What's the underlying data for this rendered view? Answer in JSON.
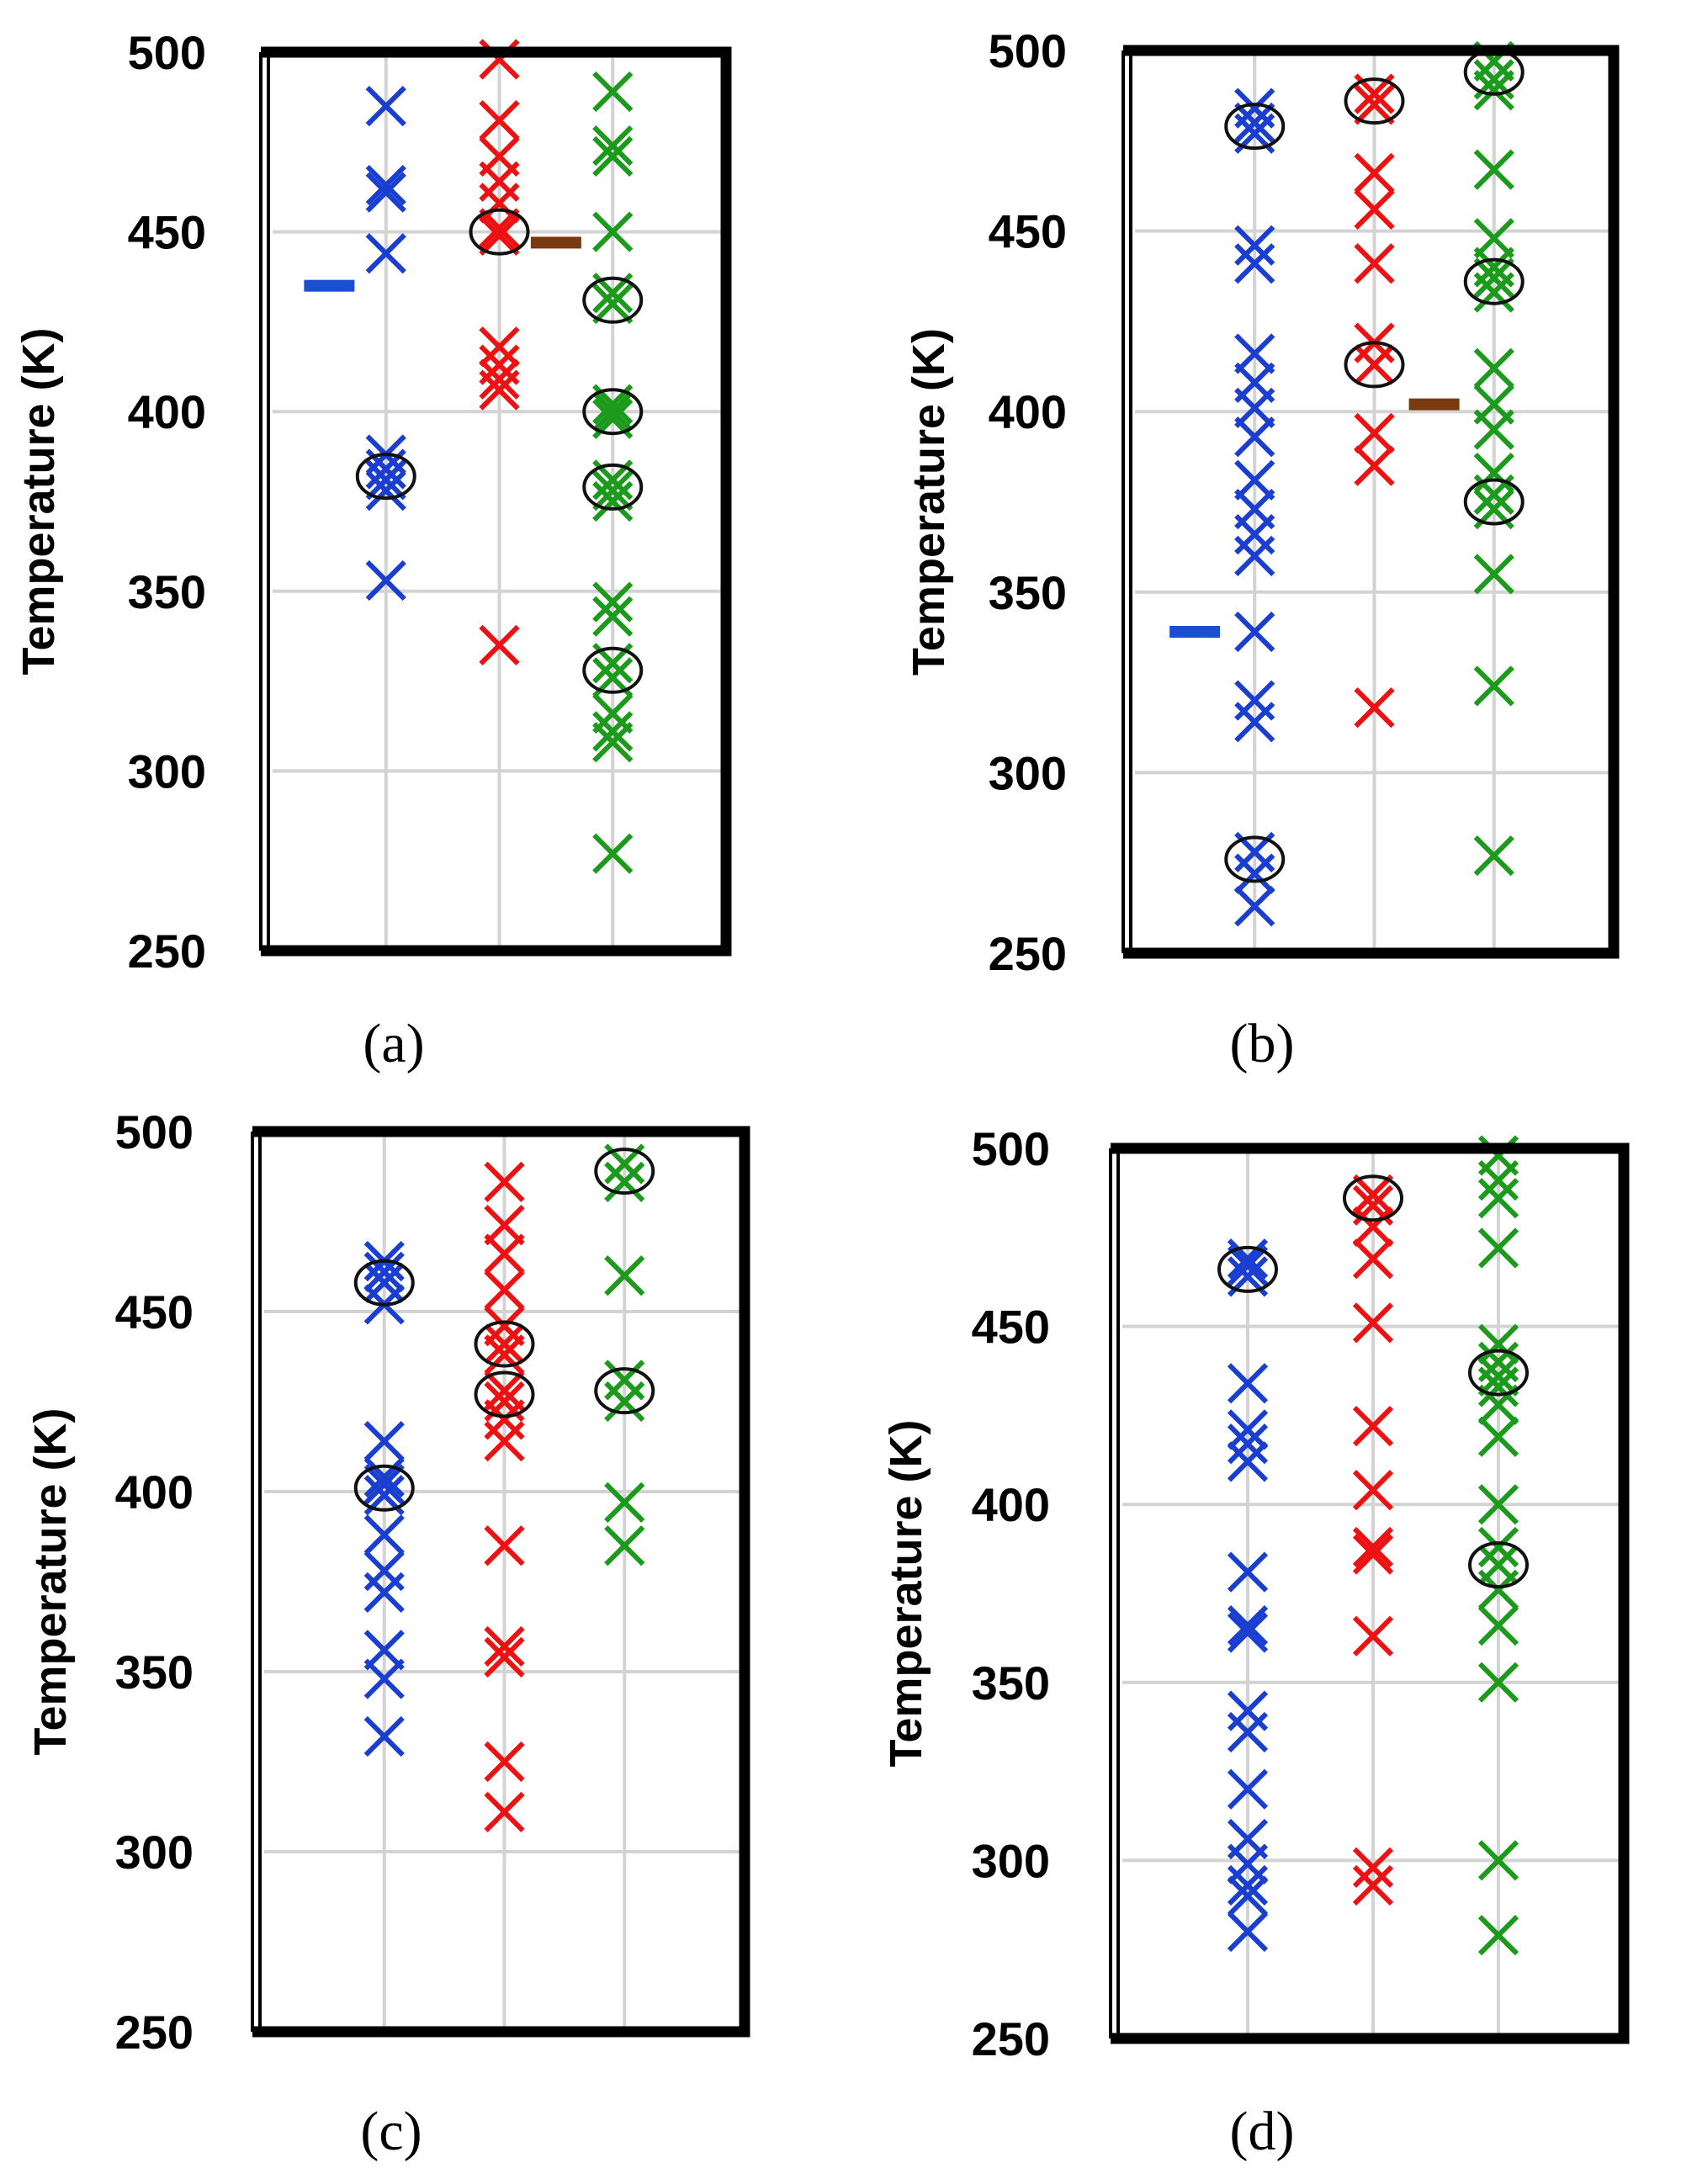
{
  "figure": {
    "colors": {
      "series1": "#1a3fd0",
      "series2": "#ee1111",
      "series3": "#1c9a1c",
      "avg_blue": "#1a4fd0",
      "avg_brown": "#7a3a10",
      "grid": "#d3d3d3",
      "frame": "#000000",
      "circle": "#111111"
    }
  },
  "chart_data": [
    {
      "id": "a",
      "label": "(a)",
      "type": "scatter",
      "ylabel": "Temperature (K)",
      "ylim": [
        250,
        500
      ],
      "yticks": [
        250,
        300,
        350,
        400,
        450,
        500
      ],
      "columns": [
        {
          "x": 1,
          "values": [
            485,
            463,
            461,
            444,
            388,
            384,
            381,
            378,
            353
          ],
          "circled": [
            382
          ]
        },
        {
          "x": 2,
          "values": [
            498,
            481,
            471,
            464,
            458,
            451,
            449,
            418,
            413,
            409,
            406,
            335
          ],
          "circled": [
            450
          ]
        },
        {
          "x": 3,
          "values": [
            489,
            474,
            471,
            450,
            433,
            430,
            402,
            400,
            398,
            381,
            378,
            375,
            347,
            343,
            330,
            326,
            316,
            311,
            308,
            277
          ],
          "circled": [
            431,
            400,
            379,
            328
          ]
        }
      ],
      "markers": [
        {
          "x": 0.5,
          "y": 435,
          "color": "avg_blue"
        },
        {
          "x": 2.5,
          "y": 447,
          "color": "avg_brown"
        }
      ]
    },
    {
      "id": "b",
      "label": "(b)",
      "type": "scatter",
      "ylabel": "Temperature (K)",
      "ylim": [
        250,
        500
      ],
      "yticks": [
        250,
        300,
        350,
        400,
        450,
        500
      ],
      "columns": [
        {
          "x": 1,
          "values": [
            484,
            480,
            477,
            446,
            441,
            416,
            408,
            401,
            393,
            381,
            373,
            366,
            360,
            339,
            320,
            314,
            278,
            272,
            263
          ],
          "circled": [
            479,
            276
          ]
        },
        {
          "x": 2,
          "values": [
            488,
            485,
            466,
            456,
            441,
            419,
            413,
            394,
            385,
            318
          ],
          "circled": [
            486,
            413
          ]
        },
        {
          "x": 3,
          "values": [
            497,
            492,
            489,
            467,
            448,
            440,
            437,
            433,
            412,
            402,
            395,
            383,
            377,
            373,
            355,
            324,
            277
          ],
          "circled": [
            494,
            436,
            375
          ]
        }
      ],
      "markers": [
        {
          "x": 0.5,
          "y": 339,
          "color": "avg_blue"
        },
        {
          "x": 2.5,
          "y": 402,
          "color": "avg_brown"
        }
      ]
    },
    {
      "id": "c",
      "label": "(c)",
      "type": "scatter",
      "ylabel": "Temperature (K)",
      "ylim": [
        250,
        500
      ],
      "yticks": [
        250,
        300,
        350,
        400,
        450,
        500
      ],
      "columns": [
        {
          "x": 1,
          "values": [
            464,
            461,
            458,
            452,
            414,
            404,
            402,
            399,
            388,
            378,
            372,
            356,
            348,
            332
          ],
          "circled": [
            458,
            401
          ]
        },
        {
          "x": 2,
          "values": [
            486,
            474,
            466,
            456,
            446,
            441,
            438,
            428,
            425,
            420,
            414,
            385,
            357,
            354,
            325,
            311
          ],
          "circled": [
            441,
            427
          ]
        },
        {
          "x": 3,
          "values": [
            491,
            486,
            460,
            431,
            425,
            397,
            385
          ],
          "circled": [
            489,
            428
          ]
        }
      ],
      "markers": []
    },
    {
      "id": "d",
      "label": "(d)",
      "type": "scatter",
      "ylabel": "Temperature (K)",
      "ylim": [
        250,
        500
      ],
      "yticks": [
        250,
        300,
        350,
        400,
        450,
        500
      ],
      "columns": [
        {
          "x": 1,
          "values": [
            469,
            467,
            464,
            434,
            421,
            417,
            412,
            381,
            366,
            364,
            342,
            336,
            320,
            306,
            299,
            293,
            290,
            280
          ],
          "circled": [
            466
          ]
        },
        {
          "x": 2,
          "values": [
            487,
            484,
            478,
            469,
            451,
            422,
            404,
            388,
            386,
            363,
            298,
            293
          ],
          "circled": [
            486
          ]
        },
        {
          "x": 3,
          "values": [
            498,
            491,
            486,
            472,
            445,
            440,
            436,
            433,
            428,
            419,
            400,
            388,
            383,
            376,
            366,
            350,
            300,
            279
          ],
          "circled": [
            437,
            383
          ]
        }
      ],
      "markers": []
    }
  ]
}
